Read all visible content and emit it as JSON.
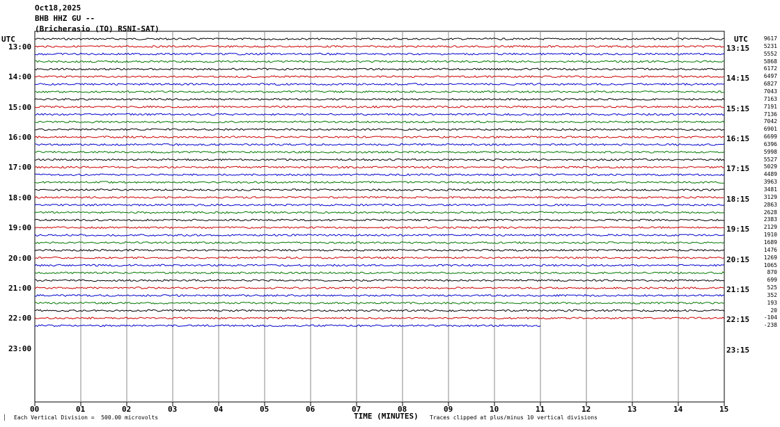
{
  "header": {
    "date": "Oct18,2025",
    "channel": "BHB HHZ GU --",
    "station": "(Bricherasio (TO) RSNI-SAT)"
  },
  "utc_left": "UTC",
  "utc_right": "UTC",
  "footer": {
    "left_mark": "▕",
    "division": "Each Vertical Division =  500.00 microvolts",
    "x_title": "TIME (MINUTES)",
    "clipped": "Traces clipped at plus/minus 10 vertical divisions"
  },
  "colors": {
    "black": "#000000",
    "red": "#cc0000",
    "blue": "#0000cc",
    "green": "#007700",
    "grid": "#888888"
  },
  "chart_data": {
    "type": "line",
    "title": "",
    "xlabel": "TIME (MINUTES)",
    "xlim": [
      0,
      15
    ],
    "x_ticks": [
      "00",
      "01",
      "02",
      "03",
      "04",
      "05",
      "06",
      "07",
      "08",
      "09",
      "10",
      "11",
      "12",
      "13",
      "14",
      "15"
    ],
    "hour_labels_left": [
      "13:00",
      "14:00",
      "15:00",
      "16:00",
      "17:00",
      "18:00",
      "19:00",
      "20:00",
      "21:00",
      "22:00",
      "23:00"
    ],
    "hour_labels_right": [
      "13:15",
      "14:15",
      "15:15",
      "16:15",
      "17:15",
      "18:15",
      "19:15",
      "20:15",
      "21:15",
      "22:15",
      "23:15"
    ],
    "trace_offsets": [
      "9617",
      "5231",
      "5552",
      "5868",
      "6172",
      "6497",
      "6827",
      "7043",
      "7163",
      "7191",
      "7136",
      "7042",
      "6901",
      "6699",
      "6396",
      "5998",
      "5527",
      "5029",
      "4489",
      "3963",
      "3481",
      "3129",
      "2863",
      "2628",
      "2383",
      "2129",
      "1910",
      "1689",
      "1476",
      "1269",
      "1065",
      "870",
      "699",
      "525",
      "352",
      "193",
      "20",
      "-104",
      "-238"
    ],
    "trace_colors": [
      "black",
      "red",
      "blue",
      "green"
    ],
    "rows_per_hour": 4,
    "first_trace_time": "12:45",
    "last_trace_end_minute": 11,
    "unit": "microvolts",
    "vertical_division": 500.0
  }
}
